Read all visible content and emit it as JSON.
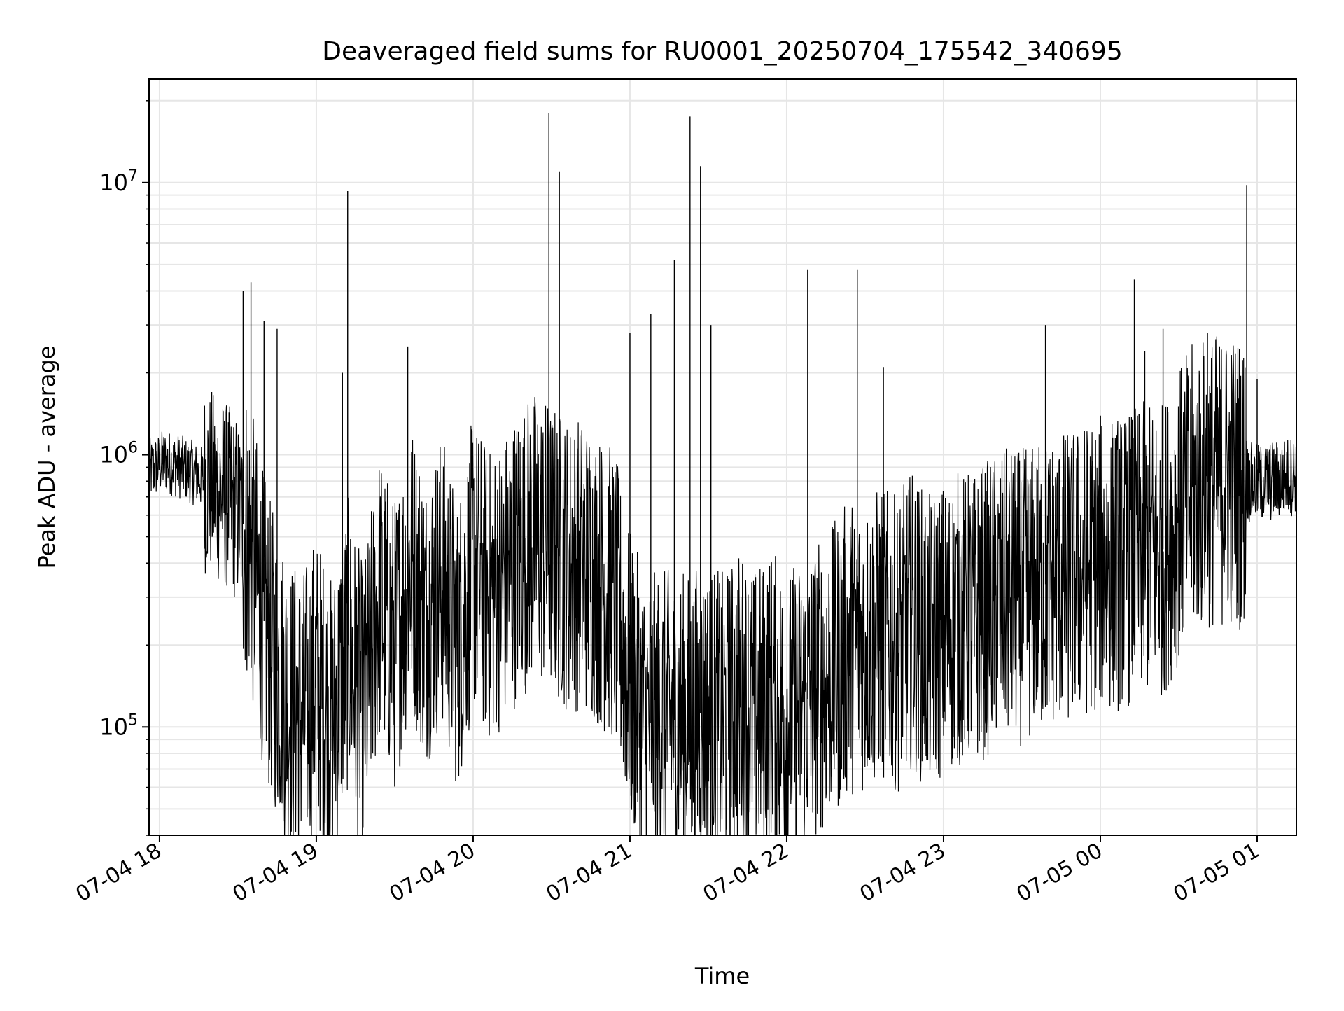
{
  "chart_data": {
    "type": "line",
    "title": "Deaveraged field sums for RU0001_20250704_175542_340695",
    "xlabel": "Time",
    "ylabel": "Peak ADU - average",
    "x_type": "datetime",
    "xlim": [
      "2025-07-04 17:56:00",
      "2025-07-05 01:15:00"
    ],
    "ylim": [
      40000,
      24000000
    ],
    "yscale": "log",
    "grid": true,
    "x_ticks": [
      {
        "value": "2025-07-04 18:00",
        "label": "07-04 18"
      },
      {
        "value": "2025-07-04 19:00",
        "label": "07-04 19"
      },
      {
        "value": "2025-07-04 20:00",
        "label": "07-04 20"
      },
      {
        "value": "2025-07-04 21:00",
        "label": "07-04 21"
      },
      {
        "value": "2025-07-04 22:00",
        "label": "07-04 22"
      },
      {
        "value": "2025-07-04 23:00",
        "label": "07-04 23"
      },
      {
        "value": "2025-07-05 00:00",
        "label": "07-05 00"
      },
      {
        "value": "2025-07-05 01:00",
        "label": "07-05 01"
      }
    ],
    "y_ticks": [
      {
        "value": 100000,
        "base": "10",
        "exp": "5"
      },
      {
        "value": 1000000,
        "base": "10",
        "exp": "6"
      },
      {
        "value": 10000000,
        "base": "10",
        "exp": "7"
      }
    ],
    "series": [
      {
        "color": "#000000",
        "points": [
          [
            "2025-07-04 17:56:00",
            870000
          ],
          [
            "2025-07-04 18:02:00",
            950000
          ],
          [
            "2025-07-04 18:08:00",
            900000
          ],
          [
            "2025-07-04 18:14:00",
            850000
          ],
          [
            "2025-07-04 18:20:00",
            780000
          ],
          [
            "2025-07-04 18:26:00",
            700000
          ],
          [
            "2025-07-04 18:30:00",
            620000
          ],
          [
            "2025-07-04 18:34:00",
            500000
          ],
          [
            "2025-07-04 18:38:00",
            300000
          ],
          [
            "2025-07-04 18:42:00",
            200000
          ],
          [
            "2025-07-04 18:46:00",
            150000
          ],
          [
            "2025-07-04 18:50:00",
            120000
          ],
          [
            "2025-07-04 18:55:00",
            110000
          ],
          [
            "2025-07-04 19:00:00",
            150000
          ],
          [
            "2025-07-04 19:06:00",
            100000
          ],
          [
            "2025-07-04 19:12:00",
            200000
          ],
          [
            "2025-07-04 19:18:00",
            110000
          ],
          [
            "2025-07-04 19:24:00",
            300000
          ],
          [
            "2025-07-04 19:30:00",
            200000
          ],
          [
            "2025-07-04 19:36:00",
            400000
          ],
          [
            "2025-07-04 19:42:00",
            250000
          ],
          [
            "2025-07-04 19:48:00",
            350000
          ],
          [
            "2025-07-04 19:54:00",
            200000
          ],
          [
            "2025-07-04 20:00:00",
            400000
          ],
          [
            "2025-07-04 20:06:00",
            300000
          ],
          [
            "2025-07-04 20:12:00",
            350000
          ],
          [
            "2025-07-04 20:18:00",
            450000
          ],
          [
            "2025-07-04 20:24:00",
            500000
          ],
          [
            "2025-07-04 20:30:00",
            450000
          ],
          [
            "2025-07-04 20:36:00",
            400000
          ],
          [
            "2025-07-04 20:42:00",
            400000
          ],
          [
            "2025-07-04 20:48:00",
            350000
          ],
          [
            "2025-07-04 20:54:00",
            300000
          ],
          [
            "2025-07-04 21:00:00",
            150000
          ],
          [
            "2025-07-04 21:06:00",
            100000
          ],
          [
            "2025-07-04 21:12:00",
            110000
          ],
          [
            "2025-07-04 21:18:00",
            105000
          ],
          [
            "2025-07-04 21:24:00",
            110000
          ],
          [
            "2025-07-04 21:30:00",
            115000
          ],
          [
            "2025-07-04 21:36:00",
            105000
          ],
          [
            "2025-07-04 21:42:00",
            130000
          ],
          [
            "2025-07-04 21:48:00",
            110000
          ],
          [
            "2025-07-04 21:54:00",
            130000
          ],
          [
            "2025-07-04 22:00:00",
            110000
          ],
          [
            "2025-07-04 22:06:00",
            120000
          ],
          [
            "2025-07-04 22:12:00",
            140000
          ],
          [
            "2025-07-04 22:18:00",
            160000
          ],
          [
            "2025-07-04 22:24:00",
            200000
          ],
          [
            "2025-07-04 22:30:00",
            200000
          ],
          [
            "2025-07-04 22:36:00",
            220000
          ],
          [
            "2025-07-04 22:42:00",
            200000
          ],
          [
            "2025-07-04 22:48:00",
            250000
          ],
          [
            "2025-07-04 22:54:00",
            200000
          ],
          [
            "2025-07-04 23:00:00",
            230000
          ],
          [
            "2025-07-04 23:06:00",
            250000
          ],
          [
            "2025-07-04 23:12:00",
            250000
          ],
          [
            "2025-07-04 23:18:00",
            280000
          ],
          [
            "2025-07-04 23:24:00",
            300000
          ],
          [
            "2025-07-04 23:30:00",
            300000
          ],
          [
            "2025-07-04 23:36:00",
            320000
          ],
          [
            "2025-07-04 23:42:00",
            350000
          ],
          [
            "2025-07-04 23:48:00",
            350000
          ],
          [
            "2025-07-04 23:54:00",
            380000
          ],
          [
            "2025-07-05 00:00:00",
            400000
          ],
          [
            "2025-07-05 00:06:00",
            400000
          ],
          [
            "2025-07-05 00:12:00",
            420000
          ],
          [
            "2025-07-05 00:18:00",
            450000
          ],
          [
            "2025-07-05 00:24:00",
            450000
          ],
          [
            "2025-07-05 00:30:00",
            600000
          ],
          [
            "2025-07-05 00:36:00",
            750000
          ],
          [
            "2025-07-05 00:42:00",
            800000
          ],
          [
            "2025-07-05 00:48:00",
            820000
          ],
          [
            "2025-07-05 00:54:00",
            800000
          ],
          [
            "2025-07-05 01:00:00",
            780000
          ],
          [
            "2025-07-05 01:06:00",
            800000
          ],
          [
            "2025-07-05 01:12:00",
            830000
          ],
          [
            "2025-07-05 01:15:00",
            850000
          ]
        ]
      }
    ],
    "spikes": [
      {
        "time": "2025-07-04 18:32:00",
        "value": 4000000
      },
      {
        "time": "2025-07-04 18:35:00",
        "value": 4300000
      },
      {
        "time": "2025-07-04 18:40:00",
        "value": 3100000
      },
      {
        "time": "2025-07-04 18:45:00",
        "value": 2900000
      },
      {
        "time": "2025-07-04 19:12:00",
        "value": 9300000
      },
      {
        "time": "2025-07-04 19:10:00",
        "value": 2000000
      },
      {
        "time": "2025-07-04 19:35:00",
        "value": 2500000
      },
      {
        "time": "2025-07-04 20:29:00",
        "value": 18000000
      },
      {
        "time": "2025-07-04 20:33:00",
        "value": 11000000
      },
      {
        "time": "2025-07-04 21:00:00",
        "value": 2800000
      },
      {
        "time": "2025-07-04 21:08:00",
        "value": 3300000
      },
      {
        "time": "2025-07-04 21:17:00",
        "value": 5200000
      },
      {
        "time": "2025-07-04 21:23:00",
        "value": 17500000
      },
      {
        "time": "2025-07-04 21:27:00",
        "value": 11500000
      },
      {
        "time": "2025-07-04 21:31:00",
        "value": 3000000
      },
      {
        "time": "2025-07-04 22:08:00",
        "value": 4800000
      },
      {
        "time": "2025-07-04 22:27:00",
        "value": 4800000
      },
      {
        "time": "2025-07-04 22:37:00",
        "value": 2100000
      },
      {
        "time": "2025-07-04 23:39:00",
        "value": 3000000
      },
      {
        "time": "2025-07-05 00:13:00",
        "value": 4400000
      },
      {
        "time": "2025-07-05 00:17:00",
        "value": 2400000
      },
      {
        "time": "2025-07-05 00:24:00",
        "value": 2900000
      },
      {
        "time": "2025-07-05 00:41:00",
        "value": 2800000
      },
      {
        "time": "2025-07-05 00:56:00",
        "value": 9800000
      },
      {
        "time": "2025-07-05 01:00:00",
        "value": 1900000
      }
    ]
  }
}
